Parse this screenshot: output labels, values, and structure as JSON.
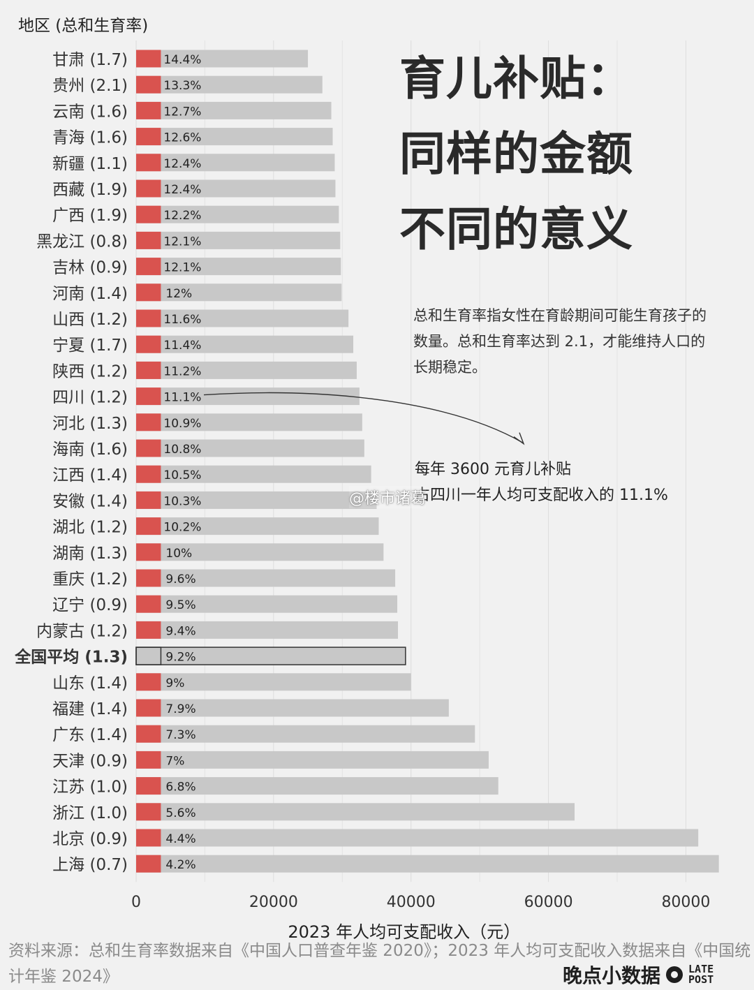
{
  "header": {
    "title_lines": [
      "育儿补贴：",
      "同样的金额",
      "不同的意义"
    ]
  },
  "note": "总和生育率指女性在育龄期间可能生育孩子的数量。总和生育率达到 2.1，才能维持人口的长期稳定。",
  "callout": {
    "line1": "每年 3600 元育儿补贴",
    "line2": "占四川一年人均可支配收入的 11.1%"
  },
  "watermark_tag": "@楼市诸葛",
  "source": "资料来源：总和生育率数据来自《中国人口普查年鉴 2020》；2023 年人均可支配收入数据来自《中国统计年鉴 2024》",
  "brand": {
    "name": "晚点小数据",
    "logo_line1": "LATE",
    "logo_line2": "POST"
  },
  "colors": {
    "background": "#f1f1f1",
    "bar": "#c8c8c8",
    "subsidy": "#d9534f",
    "highlight_border": "#333333"
  },
  "chart_data": {
    "type": "bar",
    "orientation": "horizontal",
    "category_axis_title": "地区 (总和生育率)",
    "xlabel": "2023 年人均可支配收入（元）",
    "xlim": [
      0,
      85000
    ],
    "xticks": [
      0,
      20000,
      40000,
      60000,
      80000
    ],
    "grid": true,
    "subsidy_amount": 3600,
    "highlight": "全国平均 (1.3)",
    "categories": [
      "甘肃 (1.7)",
      "贵州 (2.1)",
      "云南 (1.6)",
      "青海 (1.6)",
      "新疆 (1.1)",
      "西藏 (1.9)",
      "广西 (1.9)",
      "黑龙江 (0.8)",
      "吉林 (0.9)",
      "河南 (1.4)",
      "山西 (1.2)",
      "宁夏 (1.7)",
      "陕西 (1.2)",
      "四川 (1.2)",
      "河北 (1.3)",
      "海南 (1.6)",
      "江西 (1.4)",
      "安徽 (1.4)",
      "湖北 (1.2)",
      "湖南 (1.3)",
      "重庆 (1.2)",
      "辽宁 (0.9)",
      "内蒙古 (1.2)",
      "全国平均 (1.3)",
      "山东 (1.4)",
      "福建 (1.4)",
      "广东 (1.4)",
      "天津 (0.9)",
      "江苏 (1.0)",
      "浙江 (1.0)",
      "北京 (0.9)",
      "上海 (0.7)"
    ],
    "series": [
      {
        "values": [
          25000,
          27100,
          28400,
          28600,
          28900,
          29000,
          29500,
          29700,
          29800,
          29900,
          30900,
          31600,
          32100,
          32500,
          32900,
          33200,
          34200,
          35000,
          35300,
          36000,
          37700,
          38000,
          38100,
          39200,
          40000,
          45500,
          49300,
          51300,
          52700,
          63800,
          81800,
          84800
        ]
      }
    ],
    "data_labels": [
      "14.4%",
      "13.3%",
      "12.7%",
      "12.6%",
      "12.4%",
      "12.4%",
      "12.2%",
      "12.1%",
      "12.1%",
      "12%",
      "11.6%",
      "11.4%",
      "11.2%",
      "11.1%",
      "10.9%",
      "10.8%",
      "10.5%",
      "10.3%",
      "10.2%",
      "10%",
      "9.6%",
      "9.5%",
      "9.4%",
      "9.2%",
      "9%",
      "7.9%",
      "7.3%",
      "7%",
      "6.8%",
      "5.6%",
      "4.4%",
      "4.2%"
    ]
  }
}
